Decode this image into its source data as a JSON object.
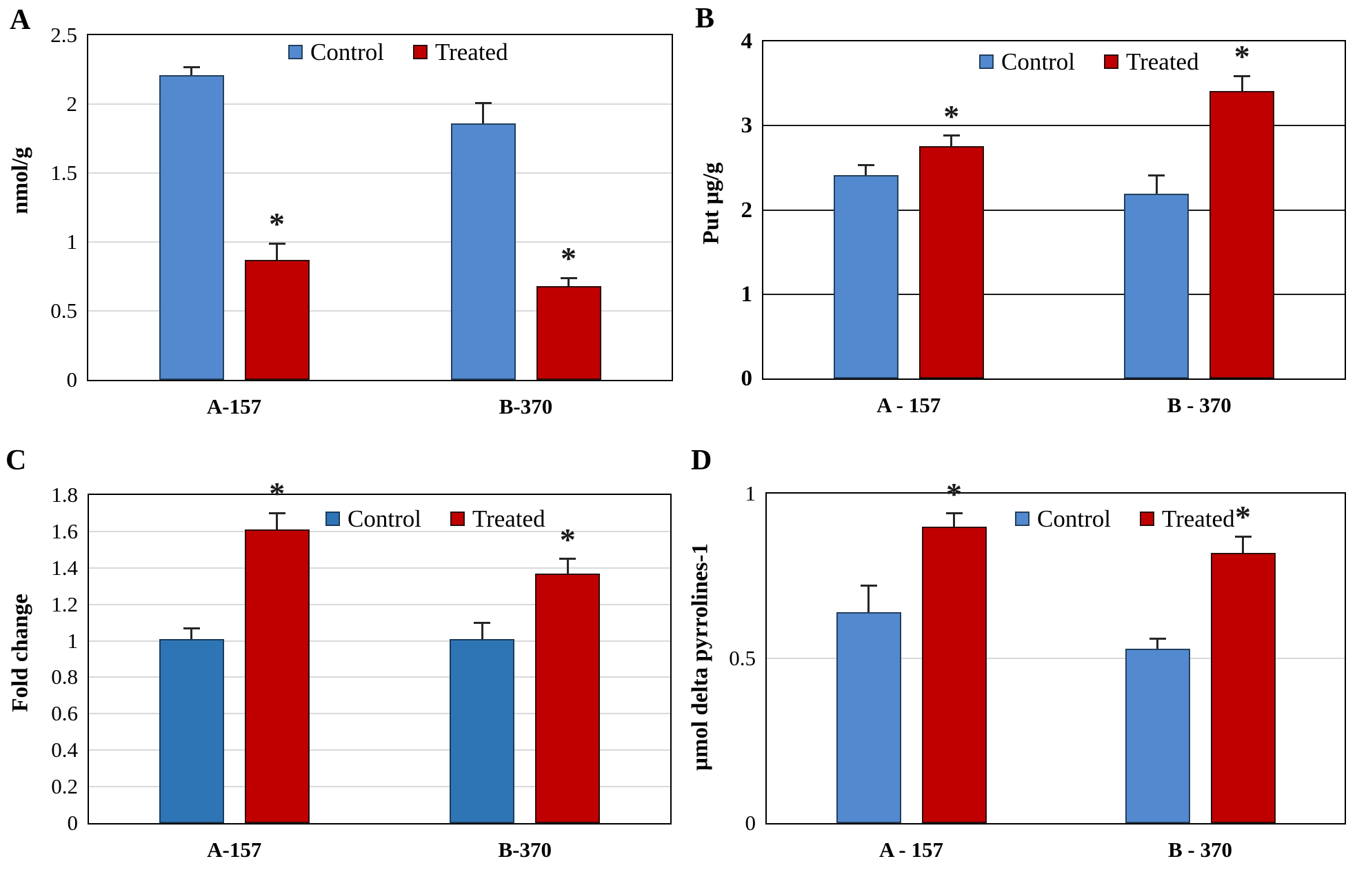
{
  "figure": {
    "description": "Four-panel bar chart comparing Control and Treated groups for cultivars A-157 and B-370",
    "legend": {
      "control": "Control",
      "treated": "Treated"
    }
  },
  "colors": {
    "control_fill_light": "#5389CE",
    "control_fill_dark": "#2E75B6",
    "control_border": "#24405E",
    "treated_fill": "#C00000",
    "treated_border": "#2B0E0E",
    "grid_light": "#D9D9D9",
    "grid_dark": "#1A1A1A",
    "error_bar": "#262626",
    "plot_border": "#000000"
  },
  "chart_data": [
    {
      "id": "panel-a",
      "letter": "A",
      "type": "bar",
      "title": "",
      "xlabel": "",
      "ylabel": "nmol/g",
      "ylim": [
        0,
        2.5
      ],
      "yticks": [
        {
          "v": 0,
          "label": "0"
        },
        {
          "v": 0.5,
          "label": "0.5"
        },
        {
          "v": 1,
          "label": "1"
        },
        {
          "v": 1.5,
          "label": "1.5"
        },
        {
          "v": 2,
          "label": "2"
        },
        {
          "v": 2.5,
          "label": "2.5"
        }
      ],
      "gridlines": {
        "style": "light",
        "values": [
          0.5,
          1,
          1.5,
          2
        ]
      },
      "legend_position": "top-center",
      "categories": [
        "A-157",
        "B-370"
      ],
      "series": [
        {
          "name": "Control",
          "fill": "#5389CE",
          "border": "#24405E",
          "values": [
            2.21,
            1.86
          ],
          "errors": [
            0.06,
            0.15
          ],
          "sig": [
            false,
            false
          ]
        },
        {
          "name": "Treated",
          "fill": "#C00000",
          "border": "#2B0E0E",
          "values": [
            0.87,
            0.68
          ],
          "errors": [
            0.12,
            0.06
          ],
          "sig": [
            true,
            true
          ]
        }
      ]
    },
    {
      "id": "panel-b",
      "letter": "B",
      "type": "bar",
      "title": "",
      "xlabel": "",
      "ylabel": "Put µg/g",
      "ylim": [
        0,
        4
      ],
      "yticks": [
        {
          "v": 0,
          "label": "0"
        },
        {
          "v": 1,
          "label": "1"
        },
        {
          "v": 2,
          "label": "2"
        },
        {
          "v": 3,
          "label": "3"
        },
        {
          "v": 4,
          "label": "4"
        }
      ],
      "gridlines": {
        "style": "dark",
        "values": [
          1,
          2,
          3
        ]
      },
      "legend_position": "top-center",
      "categories": [
        "A - 157",
        "B - 370"
      ],
      "series": [
        {
          "name": "Control",
          "fill": "#5389CE",
          "border": "#24405E",
          "values": [
            2.41,
            2.19
          ],
          "errors": [
            0.12,
            0.22
          ],
          "sig": [
            false,
            false
          ]
        },
        {
          "name": "Treated",
          "fill": "#C00000",
          "border": "#2B0E0E",
          "values": [
            2.76,
            3.41
          ],
          "errors": [
            0.12,
            0.18
          ],
          "sig": [
            true,
            true
          ]
        }
      ]
    },
    {
      "id": "panel-c",
      "letter": "C",
      "type": "bar",
      "title": "",
      "xlabel": "",
      "ylabel": "Fold change",
      "ylim": [
        0,
        1.8
      ],
      "yticks": [
        {
          "v": 0,
          "label": "0"
        },
        {
          "v": 0.2,
          "label": "0.2"
        },
        {
          "v": 0.4,
          "label": "0.4"
        },
        {
          "v": 0.6,
          "label": "0.6"
        },
        {
          "v": 0.8,
          "label": "0.8"
        },
        {
          "v": 1,
          "label": "1"
        },
        {
          "v": 1.2,
          "label": "1.2"
        },
        {
          "v": 1.4,
          "label": "1.4"
        },
        {
          "v": 1.6,
          "label": "1.6"
        },
        {
          "v": 1.8,
          "label": "1.8"
        }
      ],
      "gridlines": {
        "style": "light",
        "values": [
          0.2,
          0.4,
          0.6,
          0.8,
          1,
          1.2,
          1.4,
          1.6
        ]
      },
      "legend_position": "top-right",
      "categories": [
        "A-157",
        "B-370"
      ],
      "series": [
        {
          "name": "Control",
          "fill": "#2E75B6",
          "border": "#1A3C5C",
          "values": [
            1.01,
            1.01
          ],
          "errors": [
            0.06,
            0.09
          ],
          "sig": [
            false,
            false
          ]
        },
        {
          "name": "Treated",
          "fill": "#C00000",
          "border": "#2B0E0E",
          "values": [
            1.61,
            1.37
          ],
          "errors": [
            0.09,
            0.08
          ],
          "sig": [
            true,
            true
          ]
        }
      ]
    },
    {
      "id": "panel-d",
      "letter": "D",
      "type": "bar",
      "title": "",
      "xlabel": "",
      "ylabel": "µmol delta pyrrolines-1",
      "ylim": [
        0,
        1
      ],
      "yticks": [
        {
          "v": 0,
          "label": "0"
        },
        {
          "v": 0.5,
          "label": "0.5"
        },
        {
          "v": 1,
          "label": "1"
        }
      ],
      "gridlines": {
        "style": "light",
        "values": [
          0.5
        ]
      },
      "legend_position": "top-center",
      "categories": [
        "A - 157",
        "B - 370"
      ],
      "series": [
        {
          "name": "Control",
          "fill": "#5389CE",
          "border": "#24405E",
          "values": [
            0.64,
            0.53
          ],
          "errors": [
            0.08,
            0.03
          ],
          "sig": [
            false,
            false
          ]
        },
        {
          "name": "Treated",
          "fill": "#C00000",
          "border": "#2B0E0E",
          "values": [
            0.9,
            0.82
          ],
          "errors": [
            0.04,
            0.05
          ],
          "sig": [
            true,
            true
          ]
        }
      ]
    }
  ]
}
